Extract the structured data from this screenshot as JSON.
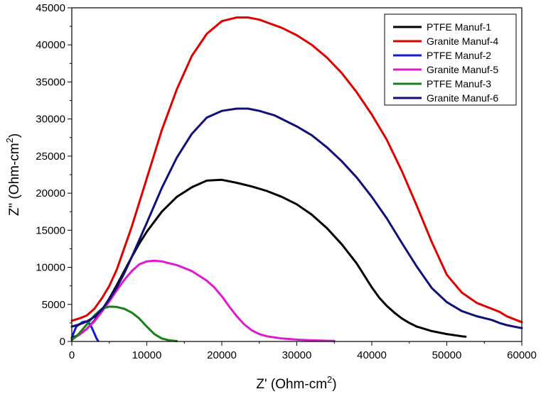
{
  "chart_data": {
    "type": "line",
    "xlabel": "Z' (Ohm-cm",
    "xlabel_sup": "2",
    "xlabel_end": ")",
    "ylabel": "Z\" (Ohm-cm",
    "ylabel_sup": "2",
    "ylabel_end": ")",
    "xlim": [
      0,
      60000
    ],
    "ylim": [
      0,
      45000
    ],
    "x_ticks": [
      "0",
      "10000",
      "20000",
      "30000",
      "40000",
      "50000",
      "60000"
    ],
    "y_ticks": [
      "0",
      "5000",
      "10000",
      "15000",
      "20000",
      "25000",
      "30000",
      "35000",
      "40000",
      "45000"
    ],
    "grid": false,
    "legend_position": "top-right",
    "series": [
      {
        "name": "PTFE Manuf-1",
        "color": "#000000",
        "x": [
          0,
          1000,
          2000,
          3000,
          4000,
          5000,
          6000,
          7000,
          8000,
          9000,
          10000,
          12000,
          14000,
          16000,
          18000,
          20000,
          22000,
          24000,
          26000,
          28000,
          30000,
          32000,
          34000,
          36000,
          38000,
          40000,
          41000,
          42000,
          43000,
          44000,
          45000,
          46000,
          47000,
          48000,
          49000,
          50000,
          51000,
          52000,
          52500
        ],
        "y": [
          500,
          900,
          1700,
          2800,
          4200,
          5800,
          7600,
          9500,
          11400,
          13200,
          14800,
          17500,
          19500,
          20800,
          21700,
          21800,
          21400,
          20900,
          20300,
          19500,
          18500,
          17100,
          15300,
          13100,
          10500,
          7300,
          5900,
          4800,
          3900,
          3100,
          2500,
          2000,
          1700,
          1400,
          1200,
          1000,
          850,
          700,
          650
        ]
      },
      {
        "name": "Granite Manuf-4",
        "color": "#e00000",
        "x": [
          0,
          1000,
          2000,
          3000,
          4000,
          5000,
          6000,
          8000,
          10000,
          12000,
          14000,
          16000,
          18000,
          20000,
          22000,
          23500,
          25000,
          28000,
          30000,
          32000,
          34000,
          36000,
          38000,
          40000,
          42000,
          44000,
          46000,
          48000,
          50000,
          52000,
          54000,
          56000,
          57000,
          58000,
          59000,
          60000
        ],
        "y": [
          2800,
          3100,
          3500,
          4400,
          5800,
          7500,
          9700,
          15500,
          22000,
          28500,
          34000,
          38500,
          41500,
          43200,
          43700,
          43700,
          43400,
          42300,
          41300,
          40000,
          38300,
          36200,
          33600,
          30600,
          27200,
          23000,
          18300,
          13400,
          9000,
          6600,
          5200,
          4400,
          4000,
          3400,
          3000,
          2600
        ]
      },
      {
        "name": "PTFE Manuf-2",
        "color": "#1818d0",
        "x": [
          0,
          300,
          600,
          1000,
          1400,
          1800,
          2200,
          2600,
          3000,
          3300,
          3500
        ],
        "y": [
          500,
          1300,
          2000,
          2300,
          2600,
          2700,
          2600,
          2000,
          1100,
          400,
          100
        ]
      },
      {
        "name": "Granite Manuf-5",
        "color": "#e018d0",
        "x": [
          0,
          1000,
          2000,
          3000,
          4000,
          5000,
          6000,
          7000,
          8000,
          9000,
          10000,
          11000,
          12000,
          14000,
          16000,
          18000,
          19000,
          20000,
          21000,
          22000,
          23000,
          24000,
          25000,
          26000,
          28000,
          30000,
          32000,
          34000,
          35000
        ],
        "y": [
          300,
          900,
          1700,
          2700,
          4000,
          5400,
          6900,
          8300,
          9500,
          10400,
          10800,
          10900,
          10800,
          10300,
          9500,
          8200,
          7300,
          6100,
          4700,
          3400,
          2300,
          1500,
          1000,
          700,
          400,
          250,
          150,
          100,
          80
        ]
      },
      {
        "name": "PTFE Manuf-3",
        "color": "#188018",
        "x": [
          0,
          500,
          1000,
          1500,
          2000,
          3000,
          4000,
          5000,
          6000,
          7000,
          8000,
          9000,
          10000,
          11000,
          12000,
          13000,
          14000
        ],
        "y": [
          200,
          600,
          1100,
          1700,
          2300,
          3500,
          4400,
          4700,
          4650,
          4400,
          3900,
          3100,
          2000,
          1000,
          400,
          150,
          50
        ]
      },
      {
        "name": "Granite Manuf-6",
        "color": "#10107a",
        "x": [
          0,
          1000,
          2000,
          3000,
          4000,
          5000,
          6000,
          7000,
          8000,
          10000,
          12000,
          14000,
          16000,
          18000,
          20000,
          22000,
          23500,
          25000,
          27000,
          30000,
          32000,
          34000,
          36000,
          38000,
          40000,
          42000,
          44000,
          46000,
          48000,
          50000,
          52000,
          54000,
          56000,
          57000,
          58000,
          59000,
          60000
        ],
        "y": [
          2000,
          2300,
          2700,
          3300,
          4300,
          5700,
          7300,
          9200,
          11400,
          16000,
          20700,
          24800,
          28000,
          30200,
          31100,
          31400,
          31400,
          31100,
          30500,
          29000,
          27800,
          26200,
          24300,
          22100,
          19500,
          16600,
          13300,
          10100,
          7200,
          5300,
          4100,
          3400,
          2900,
          2500,
          2200,
          2000,
          1800
        ]
      }
    ]
  }
}
